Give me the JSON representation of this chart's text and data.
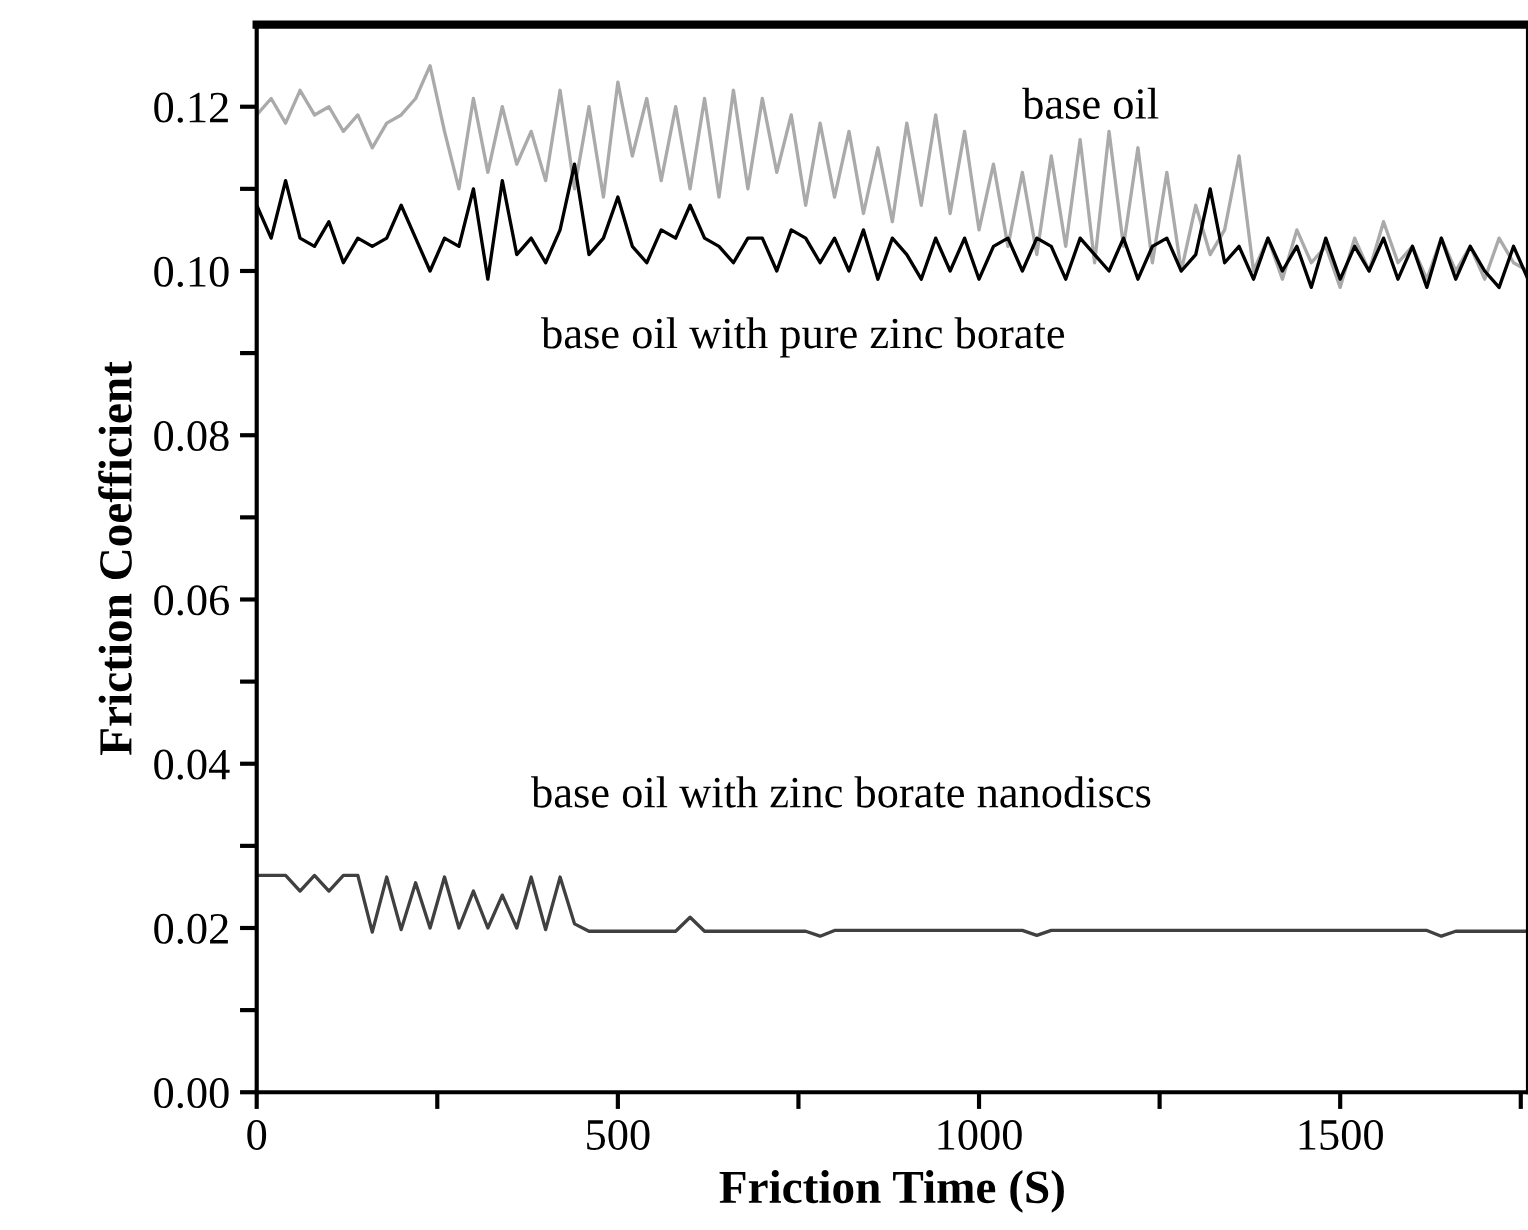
{
  "chart_data": {
    "type": "line",
    "xlabel": "Friction Time (S)",
    "ylabel": "Friction Coefficient",
    "x": [
      0,
      20,
      40,
      60,
      80,
      100,
      120,
      140,
      160,
      180,
      200,
      220,
      240,
      260,
      280,
      300,
      320,
      340,
      360,
      380,
      400,
      420,
      440,
      460,
      480,
      500,
      520,
      540,
      560,
      580,
      600,
      620,
      640,
      660,
      680,
      700,
      720,
      740,
      760,
      780,
      800,
      820,
      840,
      860,
      880,
      900,
      920,
      940,
      960,
      980,
      1000,
      1020,
      1040,
      1060,
      1080,
      1100,
      1120,
      1140,
      1160,
      1180,
      1200,
      1220,
      1240,
      1260,
      1280,
      1300,
      1320,
      1340,
      1360,
      1380,
      1400,
      1420,
      1440,
      1460,
      1480,
      1500,
      1520,
      1540,
      1560,
      1580,
      1600,
      1620,
      1640,
      1660,
      1680,
      1700,
      1720,
      1740,
      1760
    ],
    "series": [
      {
        "name": "base oil",
        "color": "#aaaaaa",
        "values": [
          0.119,
          0.121,
          0.118,
          0.122,
          0.119,
          0.12,
          0.117,
          0.119,
          0.115,
          0.118,
          0.119,
          0.121,
          0.125,
          0.117,
          0.11,
          0.121,
          0.112,
          0.12,
          0.113,
          0.117,
          0.111,
          0.122,
          0.11,
          0.12,
          0.109,
          0.123,
          0.114,
          0.121,
          0.111,
          0.12,
          0.11,
          0.121,
          0.109,
          0.122,
          0.11,
          0.121,
          0.112,
          0.119,
          0.108,
          0.118,
          0.109,
          0.117,
          0.107,
          0.115,
          0.106,
          0.118,
          0.108,
          0.119,
          0.107,
          0.117,
          0.105,
          0.113,
          0.103,
          0.112,
          0.102,
          0.114,
          0.103,
          0.116,
          0.101,
          0.117,
          0.103,
          0.115,
          0.101,
          0.112,
          0.1,
          0.108,
          0.102,
          0.105,
          0.114,
          0.1,
          0.104,
          0.099,
          0.105,
          0.101,
          0.103,
          0.098,
          0.104,
          0.1,
          0.106,
          0.101,
          0.103,
          0.099,
          0.104,
          0.1,
          0.103,
          0.099,
          0.104,
          0.101,
          0.1
        ]
      },
      {
        "name": "base oil with pure zinc borate",
        "color": "#000000",
        "values": [
          0.108,
          0.104,
          0.111,
          0.104,
          0.103,
          0.106,
          0.101,
          0.104,
          0.103,
          0.104,
          0.108,
          0.104,
          0.1,
          0.104,
          0.103,
          0.11,
          0.099,
          0.111,
          0.102,
          0.104,
          0.101,
          0.105,
          0.113,
          0.102,
          0.104,
          0.109,
          0.103,
          0.101,
          0.105,
          0.104,
          0.108,
          0.104,
          0.103,
          0.101,
          0.104,
          0.104,
          0.1,
          0.105,
          0.104,
          0.101,
          0.104,
          0.1,
          0.105,
          0.099,
          0.104,
          0.102,
          0.099,
          0.104,
          0.1,
          0.104,
          0.099,
          0.103,
          0.104,
          0.1,
          0.104,
          0.103,
          0.099,
          0.104,
          0.102,
          0.1,
          0.104,
          0.099,
          0.103,
          0.104,
          0.1,
          0.102,
          0.11,
          0.101,
          0.103,
          0.099,
          0.104,
          0.1,
          0.103,
          0.098,
          0.104,
          0.099,
          0.103,
          0.1,
          0.104,
          0.099,
          0.103,
          0.098,
          0.104,
          0.099,
          0.103,
          0.1,
          0.098,
          0.103,
          0.099
        ]
      },
      {
        "name": "base oil with zinc borate nanodiscs",
        "color": "#404040",
        "values": [
          0.0264,
          0.0264,
          0.0264,
          0.0245,
          0.0264,
          0.0245,
          0.0264,
          0.0264,
          0.0195,
          0.0262,
          0.0198,
          0.0255,
          0.02,
          0.0262,
          0.02,
          0.0245,
          0.02,
          0.024,
          0.02,
          0.0262,
          0.0198,
          0.0262,
          0.0205,
          0.0196,
          0.0196,
          0.0196,
          0.0196,
          0.0196,
          0.0196,
          0.0196,
          0.0213,
          0.0196,
          0.0196,
          0.0196,
          0.0196,
          0.0196,
          0.0196,
          0.0196,
          0.0196,
          0.019,
          0.0197,
          0.0197,
          0.0197,
          0.0197,
          0.0197,
          0.0197,
          0.0197,
          0.0197,
          0.0197,
          0.0197,
          0.0197,
          0.0197,
          0.0197,
          0.0197,
          0.0191,
          0.0197,
          0.0197,
          0.0197,
          0.0197,
          0.0197,
          0.0197,
          0.0197,
          0.0197,
          0.0197,
          0.0197,
          0.0197,
          0.0197,
          0.0197,
          0.0197,
          0.0197,
          0.0197,
          0.0197,
          0.0197,
          0.0197,
          0.0197,
          0.0197,
          0.0197,
          0.0197,
          0.0197,
          0.0197,
          0.0197,
          0.0197,
          0.019,
          0.0196,
          0.0196,
          0.0196,
          0.0196,
          0.0196,
          0.0196
        ]
      }
    ],
    "xlim": [
      0,
      1760
    ],
    "xticks": [
      0,
      {
        "value": 250,
        "label": null
      },
      500,
      {
        "value": 750,
        "label": null
      },
      1000,
      {
        "value": 1250,
        "label": null
      },
      1500,
      {
        "value": 1750,
        "label": null
      }
    ],
    "ylim": [
      0,
      0.13
    ],
    "yticks": [
      {
        "value": 0,
        "label": "0.00"
      },
      {
        "value": 0.01,
        "label": null
      },
      {
        "value": 0.02,
        "label": "0.02"
      },
      {
        "value": 0.03,
        "label": null
      },
      {
        "value": 0.04,
        "label": "0.04"
      },
      {
        "value": 0.05,
        "label": null
      },
      {
        "value": 0.06,
        "label": "0.06"
      },
      {
        "value": 0.07,
        "label": null
      },
      {
        "value": 0.08,
        "label": "0.08"
      },
      {
        "value": 0.09,
        "label": null
      },
      {
        "value": 0.1,
        "label": "0.10"
      },
      {
        "value": 0.11,
        "label": null
      },
      {
        "value": 0.12,
        "label": "0.12"
      }
    ],
    "grid": false,
    "line_style": "solid",
    "marker": "none"
  }
}
